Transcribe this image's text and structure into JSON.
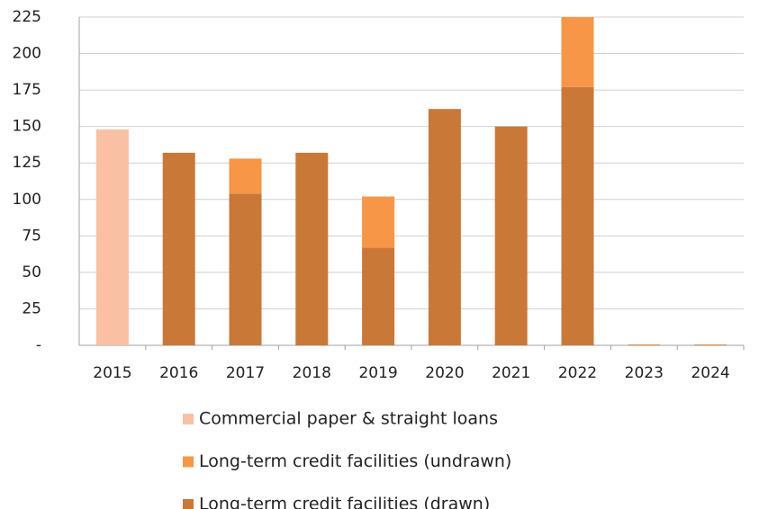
{
  "chart_data": {
    "type": "bar",
    "stacked": true,
    "categories": [
      "2015",
      "2016",
      "2017",
      "2018",
      "2019",
      "2020",
      "2021",
      "2022",
      "2023",
      "2024"
    ],
    "series": [
      {
        "name": "Commercial paper & straight loans",
        "color": "#f9c0a4",
        "values": [
          148,
          null,
          null,
          null,
          null,
          null,
          null,
          null,
          null,
          null
        ]
      },
      {
        "name": "Long-term credit facilities (undrawn)",
        "color": "#f79646",
        "values": [
          null,
          null,
          24,
          null,
          35,
          null,
          null,
          48,
          null,
          null
        ]
      },
      {
        "name": "Long-term credit facilities (drawn)",
        "color": "#c97838",
        "values": [
          null,
          132,
          104,
          132,
          67,
          162,
          150,
          177,
          0.5,
          0.5
        ]
      }
    ],
    "stack_order": [
      2,
      1,
      0
    ],
    "ylim": [
      0,
      225
    ],
    "yticks": [
      {
        "value": 0,
        "label": "-"
      },
      25,
      50,
      75,
      100,
      125,
      150,
      175,
      200,
      225
    ],
    "grid": true,
    "legend": "bottom"
  }
}
